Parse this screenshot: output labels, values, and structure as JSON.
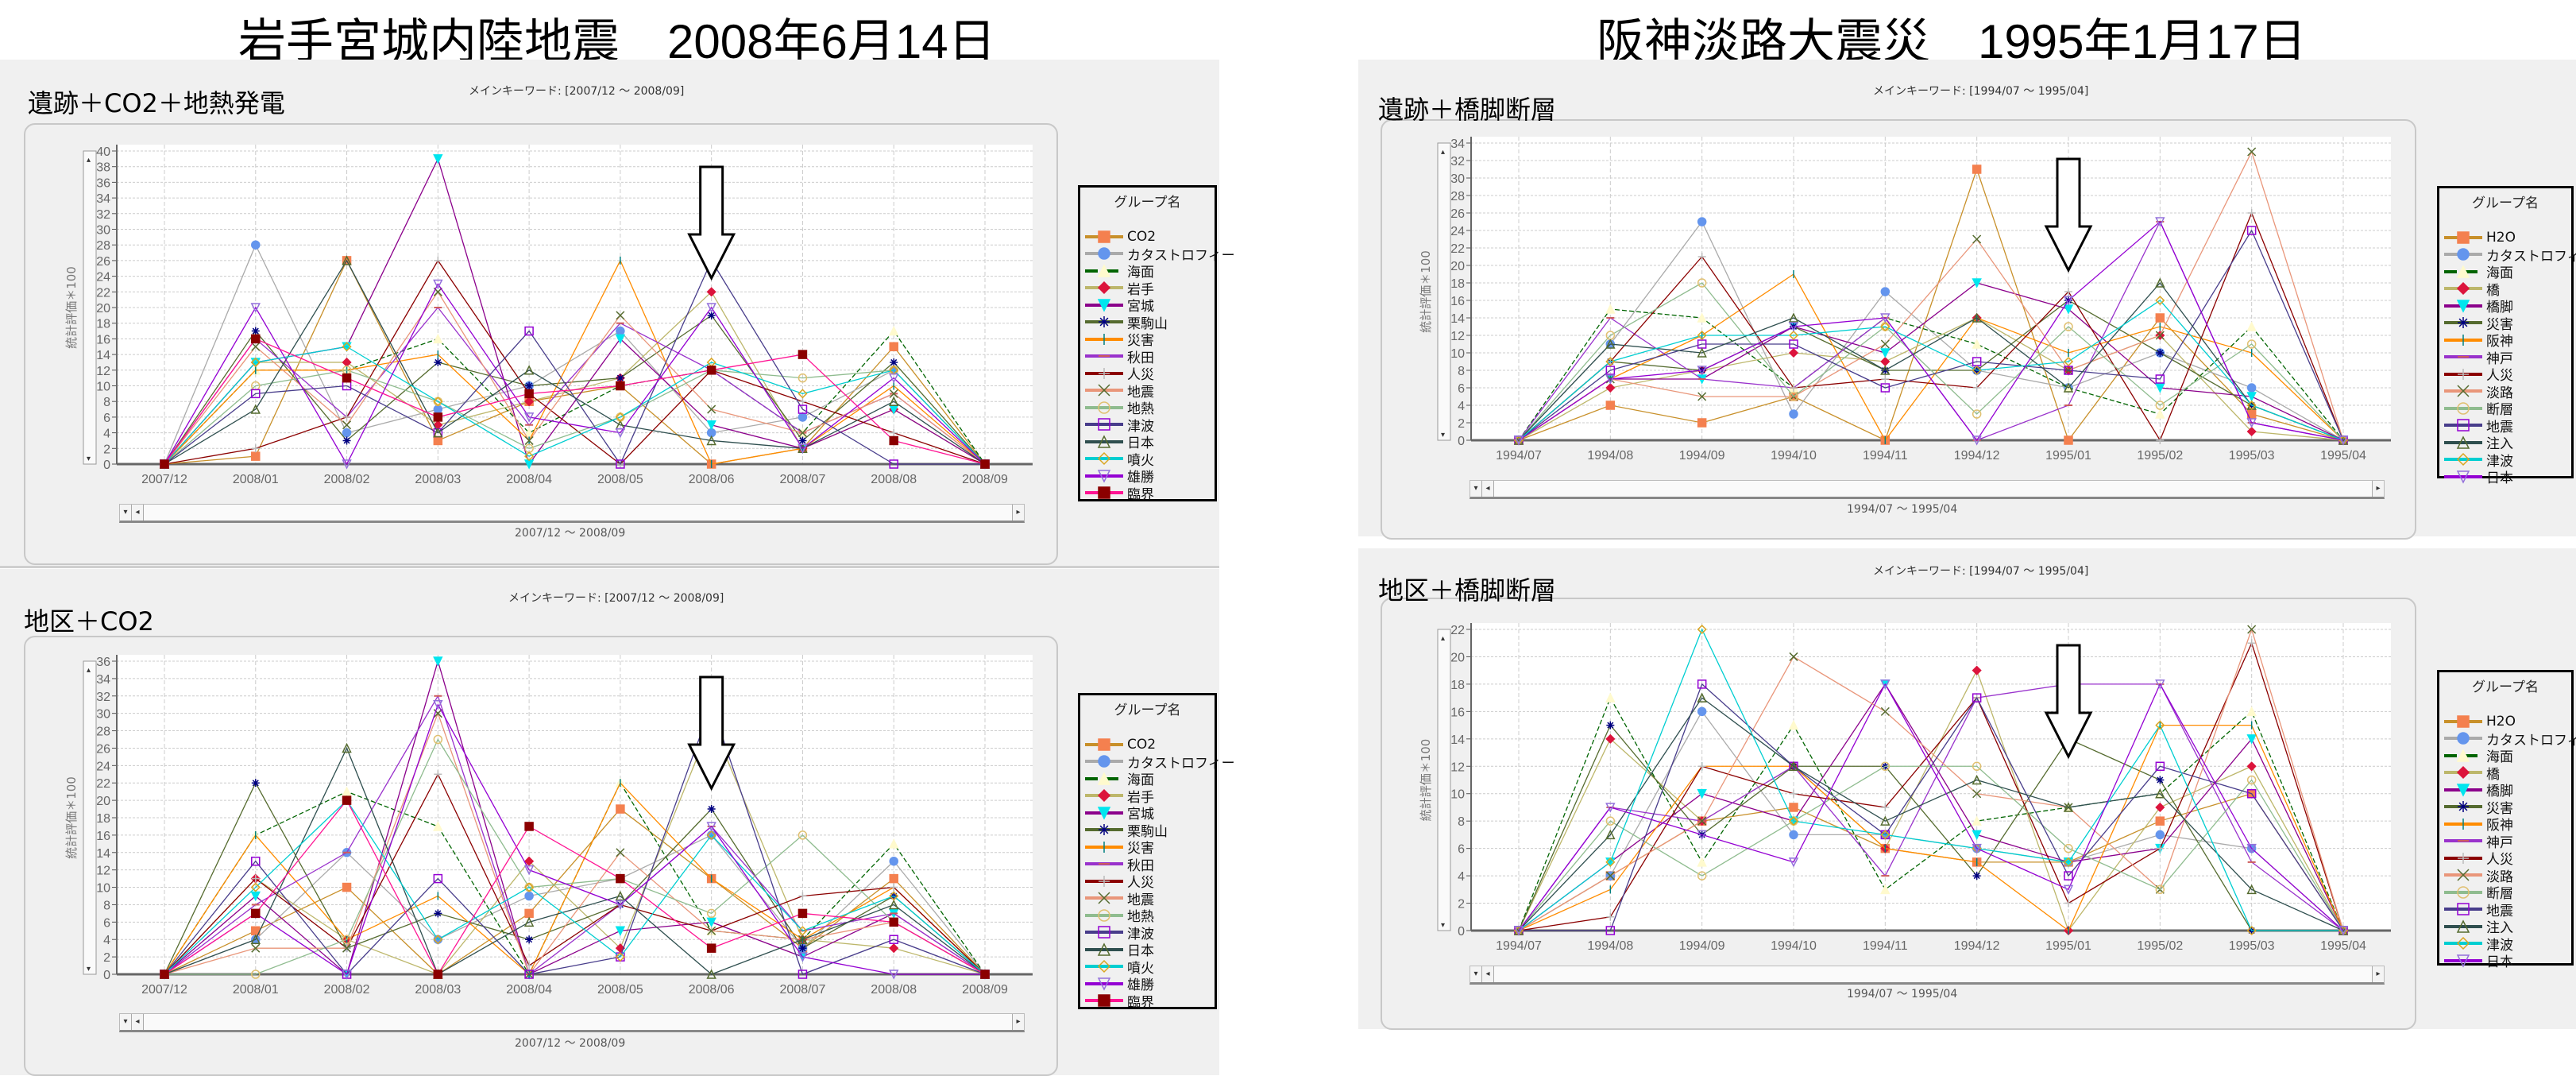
{
  "titles": {
    "left": "岩手宮城内陸地震　2008年6月14日",
    "right": "阪神淡路大震災　1995年1月17日"
  },
  "common": {
    "y_label": "統計評価＊100",
    "legend_title": "グループ名"
  },
  "panels": [
    {
      "label": "遺跡＋CO2＋地熱発電",
      "keyword": "メインキーワード: [2007/12 ～ 2008/09]",
      "range": "2007/12 ～ 2008/09"
    },
    {
      "label": "地区＋CO2",
      "keyword": "メインキーワード: [2007/12 ～ 2008/09]",
      "range": "2007/12 ～ 2008/09"
    },
    {
      "label": "遺跡＋橋脚断層",
      "keyword": "メインキーワード: [1994/07 ～ 1995/04]",
      "range": "1994/07 ～ 1995/04"
    },
    {
      "label": "地区＋橋脚断層",
      "keyword": "メインキーワード: [1994/07 ～ 1995/04]",
      "range": "1994/07 ～ 1995/04"
    }
  ],
  "styles": [
    {
      "line": "#c8902a",
      "marker": "#f4804f",
      "shape": "square"
    },
    {
      "line": "#aaaaaa",
      "marker": "#6495ed",
      "shape": "circle"
    },
    {
      "line": "#006400",
      "marker": "#fffacd",
      "shape": "triangle",
      "dash": true
    },
    {
      "line": "#bdb76b",
      "marker": "#dc143c",
      "shape": "diamond"
    },
    {
      "line": "#8b008b",
      "marker": "#00e5ee",
      "shape": "tridown"
    },
    {
      "line": "#556b2f",
      "marker": "#000080",
      "shape": "star"
    },
    {
      "line": "#ff8c00",
      "marker": "#008080",
      "shape": "vbar"
    },
    {
      "line": "#9932cc",
      "marker": "#cd5c5c",
      "shape": "dash"
    },
    {
      "line": "#8b0000",
      "marker": "#bbbbbb",
      "shape": "plus"
    },
    {
      "line": "#e9967a",
      "marker": "#556b2f",
      "shape": "x"
    },
    {
      "line": "#8fbc8f",
      "marker": "#e0c070",
      "shape": "circle-open"
    },
    {
      "line": "#483d8b",
      "marker": "#9400d3",
      "shape": "square-open"
    },
    {
      "line": "#2f4f4f",
      "marker": "#556b2f",
      "shape": "triangle-open"
    },
    {
      "line": "#00ced1",
      "marker": "#daa520",
      "shape": "diamond-open"
    },
    {
      "line": "#9400d3",
      "marker": "#9370db",
      "shape": "tridown-open"
    },
    {
      "line": "#ff1493",
      "marker": "#8b0000",
      "shape": "square"
    }
  ],
  "chart_data": [
    {
      "type": "line",
      "title": "遺跡＋CO2＋地熱発電",
      "xlabel": "2007/12 ～ 2008/09",
      "ylabel": "統計評価＊100",
      "ylim": [
        0,
        40
      ],
      "ystep": 2,
      "grid": true,
      "legend": "right",
      "event_category": "2008/06",
      "categories": [
        "2007/12",
        "2008/01",
        "2008/02",
        "2008/03",
        "2008/04",
        "2008/05",
        "2008/06",
        "2008/07",
        "2008/08",
        "2008/09"
      ],
      "series": [
        {
          "name": "CO2",
          "values": [
            0,
            1,
            26,
            3,
            8,
            10,
            0,
            2,
            15,
            0
          ]
        },
        {
          "name": "カタストロフィー",
          "values": [
            0,
            28,
            4,
            7,
            10,
            17,
            4,
            6,
            12,
            0
          ]
        },
        {
          "name": "海面",
          "values": [
            0,
            12,
            12,
            16,
            4,
            10,
            12,
            4,
            17,
            0
          ]
        },
        {
          "name": "岩手",
          "values": [
            0,
            13,
            13,
            5,
            8,
            11,
            22,
            2,
            7,
            0
          ]
        },
        {
          "name": "宮城",
          "values": [
            0,
            13,
            15,
            39,
            0,
            16,
            5,
            2,
            7,
            0
          ]
        },
        {
          "name": "栗駒山",
          "values": [
            0,
            17,
            3,
            13,
            10,
            11,
            19,
            3,
            13,
            0
          ]
        },
        {
          "name": "災害",
          "values": [
            0,
            12,
            12,
            14,
            3,
            26,
            0,
            2,
            10,
            0
          ]
        },
        {
          "name": "秋田",
          "values": [
            0,
            16,
            6,
            20,
            5,
            18,
            12,
            4,
            9,
            0
          ]
        },
        {
          "name": "人災",
          "values": [
            0,
            2,
            6,
            26,
            9,
            0,
            12,
            8,
            4,
            0
          ]
        },
        {
          "name": "地震",
          "values": [
            0,
            15,
            5,
            22,
            3,
            19,
            7,
            4,
            9,
            0
          ]
        },
        {
          "name": "地熱",
          "values": [
            0,
            10,
            12,
            8,
            2,
            6,
            12,
            11,
            12,
            0
          ]
        },
        {
          "name": "津波",
          "values": [
            0,
            9,
            10,
            4,
            17,
            0,
            26,
            7,
            0,
            0
          ]
        },
        {
          "name": "日本",
          "values": [
            0,
            7,
            26,
            4,
            12,
            5,
            3,
            2,
            8,
            0
          ]
        },
        {
          "name": "噴火",
          "values": [
            0,
            13,
            15,
            8,
            1,
            6,
            13,
            9,
            12,
            0
          ]
        },
        {
          "name": "雄勝",
          "values": [
            0,
            20,
            0,
            23,
            6,
            4,
            20,
            2,
            11,
            0
          ]
        },
        {
          "name": "臨界",
          "values": [
            0,
            16,
            11,
            6,
            9,
            10,
            12,
            14,
            3,
            0
          ]
        }
      ]
    },
    {
      "type": "line",
      "title": "地区＋CO2",
      "xlabel": "2007/12 ～ 2008/09",
      "ylabel": "統計評価＊100",
      "ylim": [
        0,
        36
      ],
      "ystep": 2,
      "grid": true,
      "legend": "right",
      "event_category": "2008/06",
      "categories": [
        "2007/12",
        "2008/01",
        "2008/02",
        "2008/03",
        "2008/04",
        "2008/05",
        "2008/06",
        "2008/07",
        "2008/08",
        "2008/09"
      ],
      "series": [
        {
          "name": "CO2",
          "values": [
            0,
            5,
            10,
            0,
            7,
            19,
            11,
            3,
            11,
            0
          ]
        },
        {
          "name": "カタストロフィー",
          "values": [
            0,
            4,
            14,
            4,
            9,
            11,
            16,
            3,
            13,
            0
          ]
        },
        {
          "name": "海面",
          "values": [
            0,
            16,
            21,
            17,
            0,
            22,
            5,
            4,
            15,
            0
          ]
        },
        {
          "name": "岩手",
          "values": [
            0,
            11,
            4,
            0,
            13,
            3,
            29,
            4,
            3,
            0
          ]
        },
        {
          "name": "宮城",
          "values": [
            0,
            9,
            0,
            36,
            0,
            5,
            6,
            2,
            7,
            0
          ]
        },
        {
          "name": "栗駒山",
          "values": [
            0,
            22,
            3,
            7,
            4,
            8,
            19,
            3,
            9,
            0
          ]
        },
        {
          "name": "災害",
          "values": [
            0,
            16,
            4,
            9,
            0,
            22,
            11,
            4,
            10,
            0
          ]
        },
        {
          "name": "秋田",
          "values": [
            0,
            8,
            14,
            32,
            0,
            8,
            17,
            5,
            7,
            0
          ]
        },
        {
          "name": "人災",
          "values": [
            0,
            11,
            3,
            23,
            1,
            8,
            5,
            9,
            10,
            0
          ]
        },
        {
          "name": "地震",
          "values": [
            0,
            3,
            3,
            30,
            0,
            14,
            5,
            4,
            6,
            0
          ]
        },
        {
          "name": "地熱",
          "values": [
            0,
            0,
            4,
            27,
            10,
            11,
            7,
            16,
            6,
            0
          ]
        },
        {
          "name": "津波",
          "values": [
            0,
            13,
            0,
            11,
            0,
            2,
            31,
            0,
            4,
            0
          ]
        },
        {
          "name": "日本",
          "values": [
            0,
            4,
            26,
            0,
            6,
            9,
            0,
            4,
            8,
            0
          ]
        },
        {
          "name": "噴火",
          "values": [
            0,
            10,
            20,
            4,
            10,
            2,
            16,
            5,
            9,
            0
          ]
        },
        {
          "name": "雄勝",
          "values": [
            0,
            7,
            0,
            31,
            12,
            8,
            17,
            2,
            0,
            0
          ]
        },
        {
          "name": "臨界",
          "values": [
            0,
            7,
            20,
            0,
            17,
            11,
            3,
            7,
            6,
            0
          ]
        }
      ]
    },
    {
      "type": "line",
      "title": "遺跡＋橋脚断層",
      "xlabel": "1994/07 ～ 1995/04",
      "ylabel": "統計評価＊100",
      "ylim": [
        0,
        34
      ],
      "ystep": 2,
      "grid": true,
      "legend": "right",
      "event_category": "1995/01",
      "categories": [
        "1994/07",
        "1994/08",
        "1994/09",
        "1994/10",
        "1994/11",
        "1994/12",
        "1995/01",
        "1995/02",
        "1995/03",
        "1995/04"
      ],
      "series": [
        {
          "name": "H2O",
          "values": [
            0,
            4,
            2,
            5,
            0,
            31,
            0,
            14,
            3,
            0
          ]
        },
        {
          "name": "カタストロフィー",
          "values": [
            0,
            11,
            25,
            3,
            17,
            8,
            6,
            10,
            6,
            0
          ]
        },
        {
          "name": "海面",
          "values": [
            0,
            15,
            14,
            6,
            14,
            11,
            6,
            3,
            13,
            0
          ]
        },
        {
          "name": "橋",
          "values": [
            0,
            6,
            8,
            10,
            9,
            14,
            8,
            12,
            1,
            0
          ]
        },
        {
          "name": "橋脚",
          "values": [
            0,
            7,
            7,
            13,
            10,
            18,
            15,
            6,
            5,
            0
          ]
        },
        {
          "name": "災害",
          "values": [
            0,
            9,
            8,
            13,
            8,
            8,
            16,
            10,
            4,
            0
          ]
        },
        {
          "name": "阪神",
          "values": [
            0,
            7,
            12,
            19,
            0,
            14,
            10,
            13,
            10,
            0
          ]
        },
        {
          "name": "神戸",
          "values": [
            0,
            14,
            7,
            6,
            14,
            0,
            4,
            25,
            2,
            0
          ]
        },
        {
          "name": "人災",
          "values": [
            0,
            9,
            21,
            6,
            7,
            6,
            17,
            0,
            26,
            0
          ]
        },
        {
          "name": "淡路",
          "values": [
            0,
            7,
            5,
            5,
            11,
            23,
            8,
            12,
            33,
            0
          ]
        },
        {
          "name": "断層",
          "values": [
            0,
            12,
            18,
            5,
            13,
            3,
            13,
            4,
            11,
            0
          ]
        },
        {
          "name": "地震",
          "values": [
            0,
            8,
            11,
            11,
            6,
            9,
            8,
            7,
            24,
            0
          ]
        },
        {
          "name": "注入",
          "values": [
            0,
            11,
            10,
            14,
            8,
            14,
            6,
            18,
            4,
            0
          ]
        },
        {
          "name": "津波",
          "values": [
            0,
            9,
            12,
            12,
            13,
            8,
            9,
            16,
            4,
            0
          ]
        },
        {
          "name": "日本",
          "values": [
            0,
            7,
            8,
            13,
            14,
            0,
            16,
            25,
            2,
            0
          ]
        }
      ]
    },
    {
      "type": "line",
      "title": "地区＋橋脚断層",
      "xlabel": "1994/07 ～ 1995/04",
      "ylabel": "統計評価＊100",
      "ylim": [
        0,
        22
      ],
      "ystep": 2,
      "grid": true,
      "legend": "right",
      "event_category": "1995/01",
      "categories": [
        "1994/07",
        "1994/08",
        "1994/09",
        "1994/10",
        "1994/11",
        "1994/12",
        "1995/01",
        "1995/02",
        "1995/03",
        "1995/04"
      ],
      "series": [
        {
          "name": "H2O",
          "values": [
            0,
            4,
            8,
            9,
            6,
            5,
            5,
            8,
            10,
            0
          ]
        },
        {
          "name": "カタストロフィー",
          "values": [
            0,
            4,
            16,
            7,
            7,
            6,
            5,
            7,
            6,
            0
          ]
        },
        {
          "name": "海面",
          "values": [
            0,
            17,
            5,
            15,
            3,
            8,
            9,
            10,
            16,
            0
          ]
        },
        {
          "name": "橋",
          "values": [
            0,
            14,
            8,
            12,
            6,
            19,
            0,
            9,
            12,
            0
          ]
        },
        {
          "name": "橋脚",
          "values": [
            0,
            5,
            10,
            8,
            18,
            7,
            5,
            6,
            14,
            0
          ]
        },
        {
          "name": "災害",
          "values": [
            0,
            15,
            7,
            12,
            12,
            4,
            14,
            11,
            0,
            0
          ]
        },
        {
          "name": "阪神",
          "values": [
            0,
            3,
            12,
            12,
            6,
            5,
            0,
            15,
            15,
            0
          ]
        },
        {
          "name": "神戸",
          "values": [
            0,
            9,
            8,
            12,
            4,
            17,
            18,
            18,
            5,
            0
          ]
        },
        {
          "name": "人災",
          "values": [
            0,
            1,
            12,
            10,
            9,
            17,
            2,
            6,
            21,
            0
          ]
        },
        {
          "name": "淡路",
          "values": [
            0,
            4,
            8,
            20,
            16,
            10,
            9,
            3,
            22,
            0
          ]
        },
        {
          "name": "断層",
          "values": [
            0,
            8,
            4,
            8,
            12,
            12,
            6,
            3,
            11,
            0
          ]
        },
        {
          "name": "地震",
          "values": [
            0,
            0,
            18,
            12,
            7,
            17,
            4,
            12,
            10,
            0
          ]
        },
        {
          "name": "注入",
          "values": [
            0,
            7,
            17,
            12,
            8,
            11,
            9,
            10,
            3,
            0
          ]
        },
        {
          "name": "津波",
          "values": [
            0,
            5,
            22,
            8,
            7,
            6,
            5,
            15,
            0,
            0
          ]
        },
        {
          "name": "日本",
          "values": [
            0,
            9,
            7,
            5,
            18,
            6,
            3,
            18,
            6,
            0
          ]
        }
      ]
    }
  ]
}
